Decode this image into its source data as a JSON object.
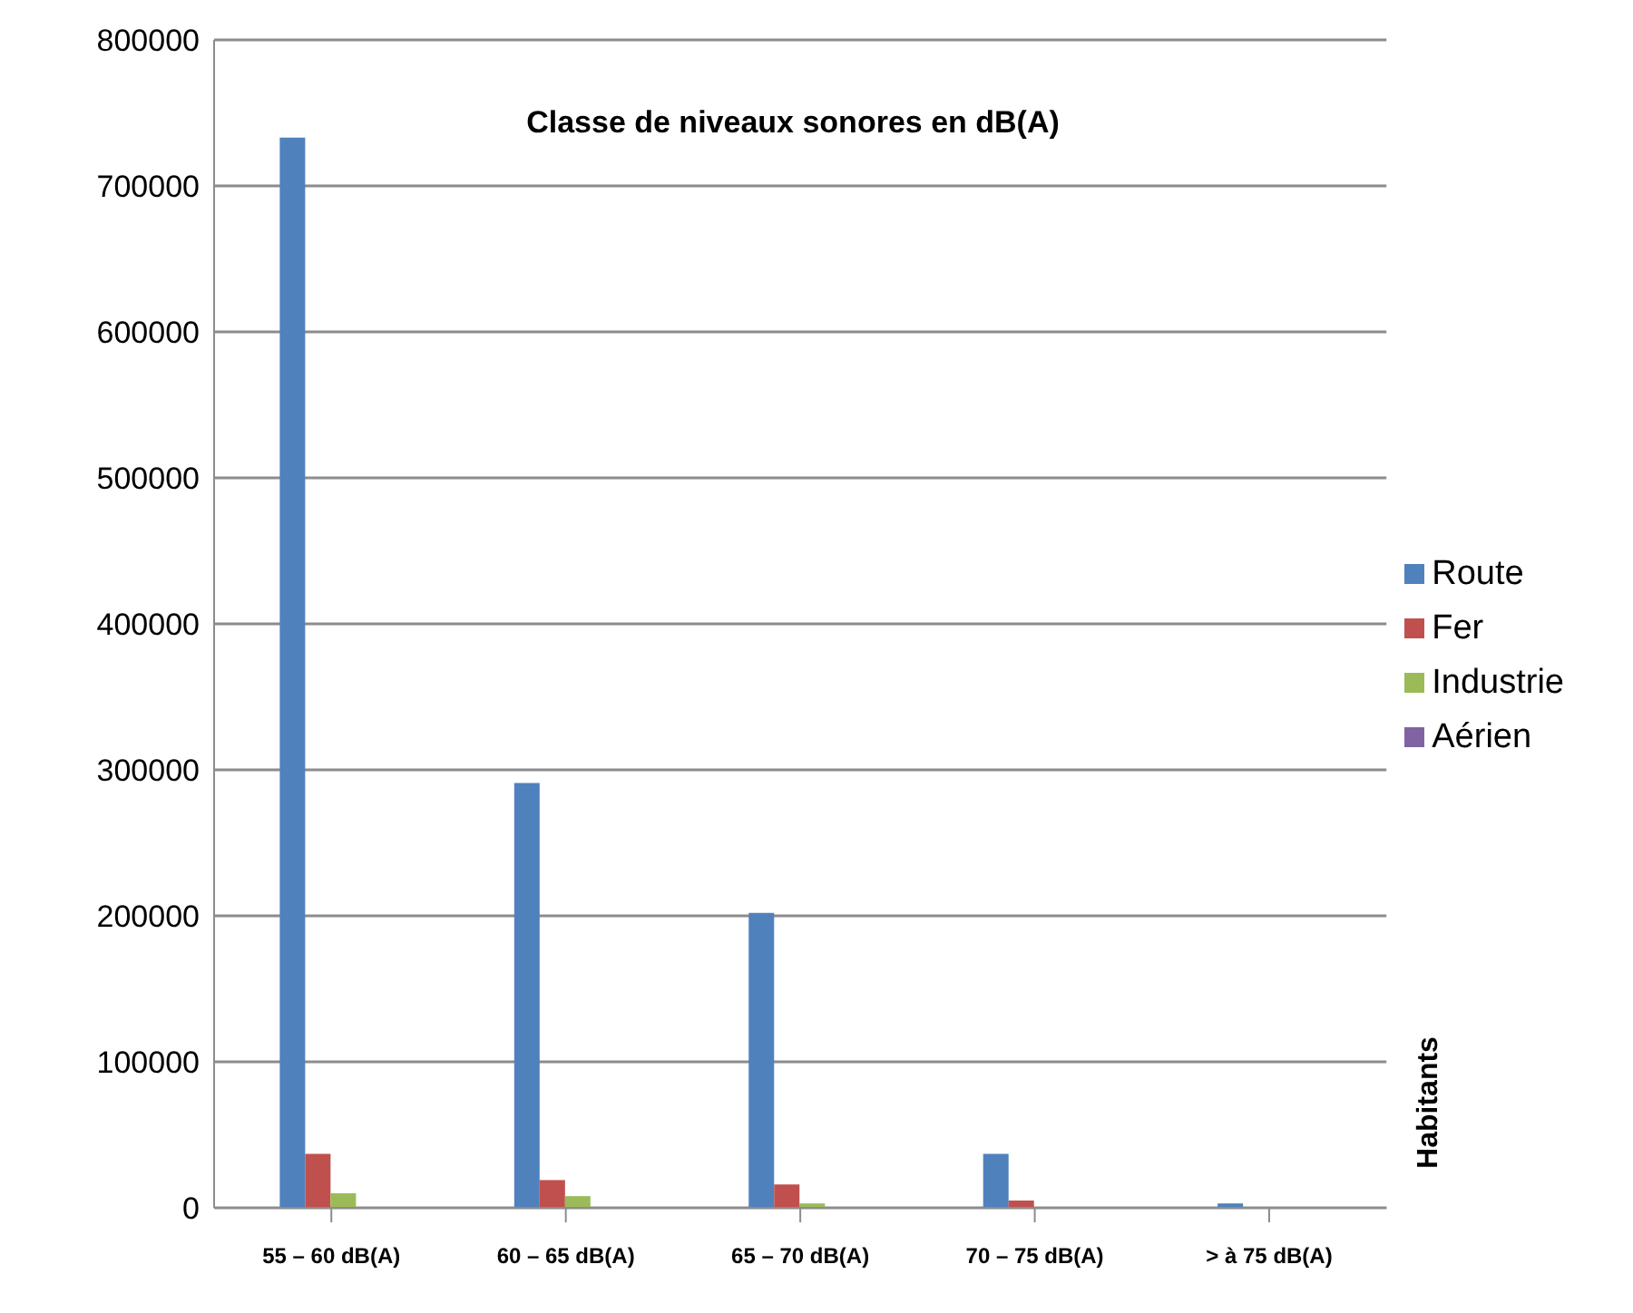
{
  "chart_data": {
    "type": "bar",
    "title": "Classe de niveaux sonores en dB(A)",
    "ylabel": "Habitants",
    "categories": [
      "55 – 60 dB(A)",
      "60 – 65 dB(A)",
      "65 – 70 dB(A)",
      "70 – 75 dB(A)",
      "> à 75 dB(A)"
    ],
    "series": [
      {
        "name": "Route",
        "color": "#4f81bd",
        "values": [
          733000,
          291000,
          202000,
          37000,
          3000
        ]
      },
      {
        "name": "Fer",
        "color": "#c0504d",
        "values": [
          37000,
          19000,
          16000,
          5000,
          0
        ]
      },
      {
        "name": "Industrie",
        "color": "#9bbb59",
        "values": [
          10000,
          8000,
          3000,
          0,
          0
        ]
      },
      {
        "name": "Aérien",
        "color": "#8064a2",
        "values": [
          0,
          0,
          0,
          0,
          0
        ]
      }
    ],
    "ylim": [
      0,
      800000
    ],
    "yticks": [
      0,
      100000,
      200000,
      300000,
      400000,
      500000,
      600000,
      700000,
      800000
    ],
    "grid": "y",
    "legend": "right"
  }
}
